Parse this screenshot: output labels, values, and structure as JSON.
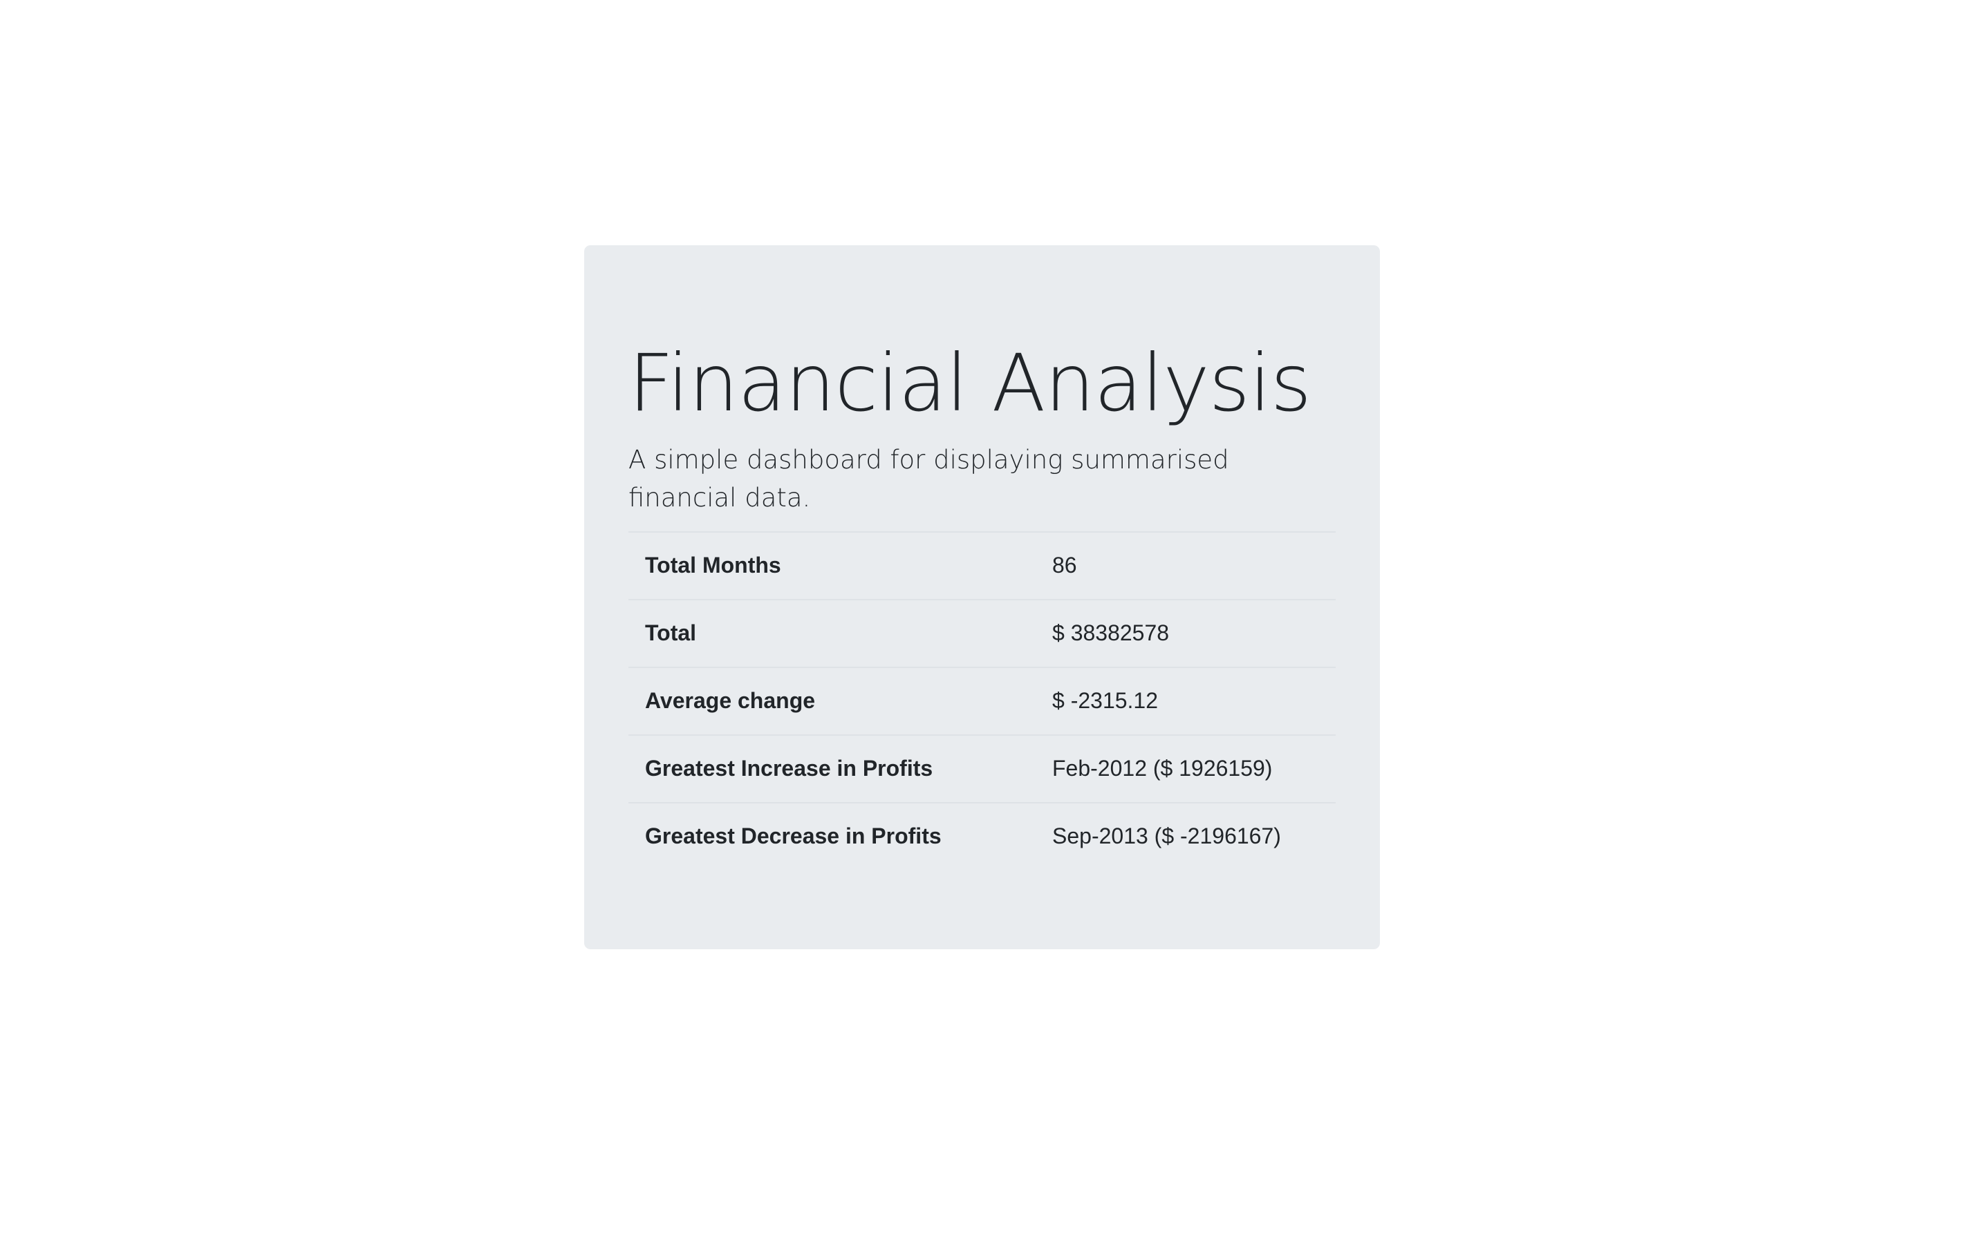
{
  "header": {
    "title": "Financial Analysis",
    "subtitle": "A simple dashboard for displaying summarised financial data."
  },
  "summary": {
    "rows": [
      {
        "label": "Total Months",
        "value": "86"
      },
      {
        "label": "Total",
        "value": "$ 38382578"
      },
      {
        "label": "Average change",
        "value": "$ -2315.12"
      },
      {
        "label": "Greatest Increase in Profits",
        "value": "Feb-2012 ($ 1926159)"
      },
      {
        "label": "Greatest Decrease in Profits",
        "value": "Sep-2013 ($ -2196167)"
      }
    ]
  },
  "colors": {
    "page_background": "#ffffff",
    "panel_background": "#e9ecef",
    "text": "#212529",
    "divider": "#dee2e6"
  }
}
